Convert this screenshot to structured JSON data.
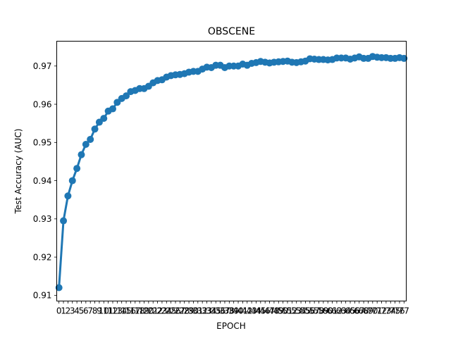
{
  "chart_data": {
    "type": "line",
    "title": "OBSCENE",
    "xlabel": "EPOCH",
    "ylabel": "Test Accuracy (AUC)",
    "color": "#1f77b4",
    "grid": false,
    "legend": "none",
    "marker": "circle",
    "ylim": [
      0.9085,
      0.9765
    ],
    "yticks": [
      0.91,
      0.92,
      0.93,
      0.94,
      0.95,
      0.96,
      0.97
    ],
    "x": [
      0,
      1,
      2,
      3,
      4,
      5,
      6,
      7,
      8,
      9,
      10,
      11,
      12,
      13,
      14,
      15,
      16,
      17,
      18,
      19,
      20,
      21,
      22,
      23,
      24,
      25,
      26,
      27,
      28,
      29,
      30,
      31,
      32,
      33,
      34,
      35,
      36,
      37,
      38,
      39,
      40,
      41,
      42,
      43,
      44,
      45,
      46,
      47,
      48,
      49,
      50,
      51,
      52,
      53,
      54,
      55,
      56,
      57,
      58,
      59,
      60,
      61,
      62,
      63,
      64,
      65,
      66,
      67,
      68,
      69,
      70,
      71,
      72,
      73,
      74,
      75,
      76,
      77
    ],
    "values": [
      0.912,
      0.9295,
      0.936,
      0.94,
      0.9432,
      0.9468,
      0.9495,
      0.9508,
      0.9535,
      0.9553,
      0.9563,
      0.9582,
      0.9588,
      0.9605,
      0.9615,
      0.9622,
      0.9633,
      0.9636,
      0.9641,
      0.9641,
      0.9647,
      0.9656,
      0.9662,
      0.9664,
      0.9671,
      0.9675,
      0.9677,
      0.9678,
      0.968,
      0.9684,
      0.9686,
      0.9686,
      0.9692,
      0.9697,
      0.9696,
      0.9702,
      0.9702,
      0.9696,
      0.97,
      0.97,
      0.97,
      0.9705,
      0.9702,
      0.9707,
      0.9709,
      0.9712,
      0.971,
      0.9708,
      0.971,
      0.9711,
      0.9712,
      0.9713,
      0.971,
      0.9709,
      0.9711,
      0.9713,
      0.9719,
      0.9718,
      0.9717,
      0.9717,
      0.9716,
      0.9717,
      0.9721,
      0.9721,
      0.9721,
      0.9718,
      0.9721,
      0.9724,
      0.972,
      0.972,
      0.9725,
      0.9723,
      0.9722,
      0.9722,
      0.972,
      0.972,
      0.9722,
      0.972
    ]
  }
}
